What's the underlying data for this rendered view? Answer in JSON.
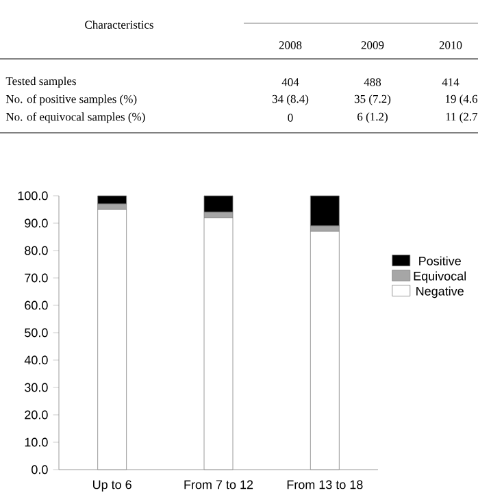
{
  "chart_data": {
    "type": "bar",
    "stacked": true,
    "categories": [
      "Up to 6",
      "From 7 to 12",
      "From 13 to 18"
    ],
    "series": [
      {
        "name": "Negative",
        "color": "#ffffff",
        "values": [
          95,
          92,
          87
        ]
      },
      {
        "name": "Equivocal",
        "color": "#a6a6a6",
        "values": [
          2,
          2,
          2
        ]
      },
      {
        "name": "Positive",
        "color": "#000000",
        "values": [
          3,
          6,
          11
        ]
      }
    ],
    "ylim": [
      0,
      100
    ],
    "yticks": [
      {
        "value": 0,
        "label": "0.0"
      },
      {
        "value": 10,
        "label": "10.0"
      },
      {
        "value": 20,
        "label": "20.0"
      },
      {
        "value": 30,
        "label": "30.0"
      },
      {
        "value": 40,
        "label": "40.0"
      },
      {
        "value": 50,
        "label": "50.0"
      },
      {
        "value": 60,
        "label": "60.0"
      },
      {
        "value": 70,
        "label": "70.0"
      },
      {
        "value": 80,
        "label": "80.0"
      },
      {
        "value": 90,
        "label": "90.0"
      },
      {
        "value": 100,
        "label": "100.0"
      }
    ],
    "legend": "right",
    "grid": false,
    "annotations": [
      "Characteristics",
      "2008",
      "2009",
      "2010",
      "Tested samples",
      "404",
      "488",
      "414",
      "No. of positive samples (%)",
      "34 (8.4)",
      "35 (7.2)",
      "19 (4.6",
      "No. of equivocal samples (%)",
      "0",
      "6 (1.2)",
      "11 (2.7"
    ]
  }
}
